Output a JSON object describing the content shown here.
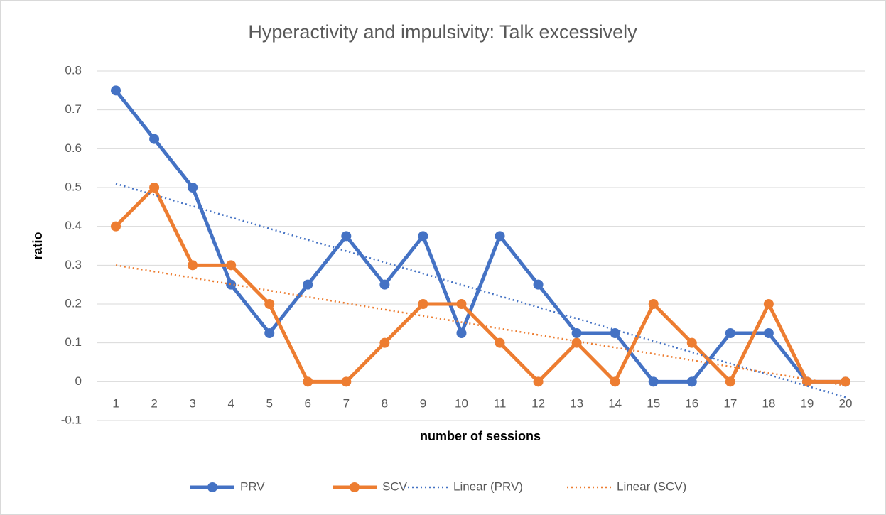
{
  "chart_data": {
    "type": "line",
    "title": "Hyperactivity and impulsivity: Talk excessively",
    "x_label": "number of sessions",
    "y_label": "ratio",
    "x": [
      1,
      2,
      3,
      4,
      5,
      6,
      7,
      8,
      9,
      10,
      11,
      12,
      13,
      14,
      15,
      16,
      17,
      18,
      19,
      20
    ],
    "series": [
      {
        "name": "PRV",
        "color": "#4472c4",
        "values": [
          0.75,
          0.625,
          0.5,
          0.25,
          0.125,
          0.25,
          0.375,
          0.25,
          0.375,
          0.125,
          0.375,
          0.25,
          0.125,
          0.125,
          0,
          0,
          0.125,
          0.125,
          0,
          0
        ]
      },
      {
        "name": "SCV",
        "color": "#ed7d31",
        "values": [
          0.4,
          0.5,
          0.3,
          0.3,
          0.2,
          0,
          0,
          0.1,
          0.2,
          0.2,
          0.1,
          0,
          0.1,
          0,
          0.2,
          0.1,
          0,
          0.2,
          0,
          0
        ]
      },
      {
        "name": "Linear (PRV)",
        "color": "#4472c4",
        "trend": true,
        "x": [
          1,
          20
        ],
        "values": [
          0.51,
          -0.04
        ]
      },
      {
        "name": "Linear (SCV)",
        "color": "#ed7d31",
        "trend": true,
        "x": [
          1,
          20
        ],
        "values": [
          0.3,
          -0.01
        ]
      }
    ],
    "ylim": [
      -0.1,
      0.8
    ],
    "yticks": [
      -0.1,
      0,
      0.1,
      0.2,
      0.3,
      0.4,
      0.5,
      0.6,
      0.7,
      0.8
    ],
    "grid": true,
    "legend": "bottom"
  }
}
